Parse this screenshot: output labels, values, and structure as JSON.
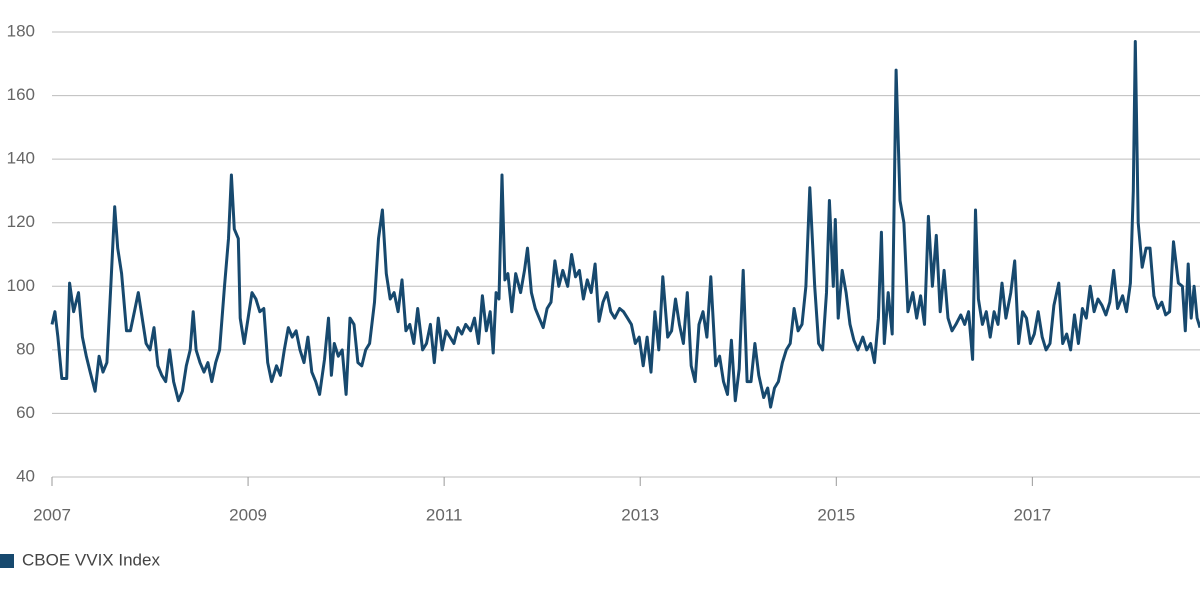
{
  "chart_data": {
    "type": "line",
    "x": [
      2007.0,
      2007.03,
      2007.06,
      2007.1,
      2007.15,
      2007.18,
      2007.22,
      2007.27,
      2007.31,
      2007.35,
      2007.39,
      2007.44,
      2007.48,
      2007.52,
      2007.56,
      2007.6,
      2007.64,
      2007.67,
      2007.71,
      2007.76,
      2007.8,
      2007.84,
      2007.88,
      2007.92,
      2007.96,
      2008.0,
      2008.04,
      2008.08,
      2008.12,
      2008.16,
      2008.2,
      2008.24,
      2008.29,
      2008.33,
      2008.37,
      2008.41,
      2008.44,
      2008.47,
      2008.51,
      2008.55,
      2008.59,
      2008.63,
      2008.67,
      2008.71,
      2008.76,
      2008.8,
      2008.83,
      2008.86,
      2008.9,
      2008.92,
      2008.96,
      2009.0,
      2009.04,
      2009.08,
      2009.12,
      2009.16,
      2009.2,
      2009.24,
      2009.29,
      2009.33,
      2009.37,
      2009.41,
      2009.45,
      2009.49,
      2009.53,
      2009.57,
      2009.61,
      2009.65,
      2009.69,
      2009.73,
      2009.78,
      2009.82,
      2009.85,
      2009.88,
      2009.92,
      2009.96,
      2010.0,
      2010.04,
      2010.08,
      2010.12,
      2010.16,
      2010.2,
      2010.24,
      2010.29,
      2010.33,
      2010.37,
      2010.41,
      2010.45,
      2010.49,
      2010.53,
      2010.57,
      2010.61,
      2010.65,
      2010.69,
      2010.73,
      2010.78,
      2010.82,
      2010.86,
      2010.9,
      2010.94,
      2010.98,
      2011.02,
      2011.06,
      2011.1,
      2011.14,
      2011.18,
      2011.22,
      2011.27,
      2011.31,
      2011.35,
      2011.39,
      2011.43,
      2011.47,
      2011.5,
      2011.53,
      2011.56,
      2011.59,
      2011.62,
      2011.65,
      2011.69,
      2011.73,
      2011.78,
      2011.82,
      2011.85,
      2011.89,
      2011.93,
      2011.97,
      2012.01,
      2012.05,
      2012.09,
      2012.13,
      2012.17,
      2012.21,
      2012.26,
      2012.3,
      2012.34,
      2012.38,
      2012.42,
      2012.46,
      2012.5,
      2012.54,
      2012.58,
      2012.62,
      2012.66,
      2012.7,
      2012.74,
      2012.79,
      2012.83,
      2012.87,
      2012.91,
      2012.95,
      2012.99,
      2013.03,
      2013.07,
      2013.11,
      2013.15,
      2013.19,
      2013.23,
      2013.28,
      2013.32,
      2013.36,
      2013.4,
      2013.44,
      2013.48,
      2013.52,
      2013.56,
      2013.6,
      2013.64,
      2013.68,
      2013.72,
      2013.77,
      2013.81,
      2013.85,
      2013.89,
      2013.93,
      2013.97,
      2014.01,
      2014.05,
      2014.09,
      2014.13,
      2014.17,
      2014.21,
      2014.26,
      2014.3,
      2014.33,
      2014.37,
      2014.41,
      2014.45,
      2014.49,
      2014.53,
      2014.57,
      2014.61,
      2014.65,
      2014.69,
      2014.73,
      2014.78,
      2014.82,
      2014.86,
      2014.9,
      2014.93,
      2014.97,
      2014.99,
      2015.02,
      2015.06,
      2015.1,
      2015.14,
      2015.18,
      2015.22,
      2015.27,
      2015.31,
      2015.35,
      2015.39,
      2015.43,
      2015.46,
      2015.49,
      2015.53,
      2015.57,
      2015.61,
      2015.65,
      2015.69,
      2015.73,
      2015.78,
      2015.82,
      2015.86,
      2015.9,
      2015.94,
      2015.98,
      2016.02,
      2016.06,
      2016.1,
      2016.14,
      2016.18,
      2016.22,
      2016.27,
      2016.31,
      2016.35,
      2016.39,
      2016.42,
      2016.45,
      2016.49,
      2016.53,
      2016.57,
      2016.61,
      2016.65,
      2016.69,
      2016.73,
      2016.78,
      2016.82,
      2016.86,
      2016.9,
      2016.94,
      2016.98,
      2017.02,
      2017.06,
      2017.1,
      2017.14,
      2017.18,
      2017.22,
      2017.27,
      2017.31,
      2017.35,
      2017.39,
      2017.43,
      2017.47,
      2017.51,
      2017.55,
      2017.59,
      2017.63,
      2017.67,
      2017.71,
      2017.75,
      2017.79,
      2017.83,
      2017.87,
      2017.92,
      2017.96,
      2018.0,
      2018.03,
      2018.05,
      2018.08,
      2018.12,
      2018.16,
      2018.2,
      2018.24,
      2018.28,
      2018.32,
      2018.36,
      2018.4,
      2018.44,
      2018.49,
      2018.53,
      2018.56,
      2018.59,
      2018.62,
      2018.65,
      2018.68,
      2018.71
    ],
    "series": [
      {
        "name": "CBOE VVIX Index",
        "color": "#17496e",
        "values": [
          88,
          92,
          84,
          71,
          71,
          101,
          92,
          98,
          84,
          78,
          73,
          67,
          78,
          73,
          76,
          100,
          125,
          112,
          104,
          86,
          86,
          92,
          98,
          90,
          82,
          80,
          87,
          75,
          72,
          70,
          80,
          70,
          64,
          67,
          75,
          80,
          92,
          80,
          76,
          73,
          76,
          70,
          76,
          80,
          100,
          115,
          135,
          118,
          115,
          90,
          82,
          90,
          98,
          96,
          92,
          93,
          76,
          70,
          75,
          72,
          80,
          87,
          84,
          86,
          80,
          76,
          84,
          73,
          70,
          66,
          77,
          90,
          72,
          82,
          78,
          80,
          66,
          90,
          88,
          76,
          75,
          80,
          82,
          95,
          115,
          124,
          104,
          96,
          98,
          92,
          102,
          86,
          88,
          82,
          93,
          80,
          82,
          88,
          76,
          90,
          80,
          86,
          84,
          82,
          87,
          85,
          88,
          86,
          90,
          82,
          97,
          86,
          92,
          79,
          98,
          96,
          135,
          102,
          104,
          92,
          104,
          98,
          105,
          112,
          98,
          93,
          90,
          87,
          93,
          95,
          108,
          100,
          105,
          100,
          110,
          103,
          105,
          96,
          102,
          98,
          107,
          89,
          95,
          98,
          92,
          90,
          93,
          92,
          90,
          88,
          82,
          84,
          75,
          84,
          73,
          92,
          80,
          103,
          84,
          86,
          96,
          88,
          82,
          98,
          75,
          70,
          88,
          92,
          84,
          103,
          75,
          78,
          70,
          66,
          83,
          64,
          74,
          105,
          70,
          70,
          82,
          72,
          65,
          68,
          62,
          68,
          70,
          76,
          80,
          82,
          93,
          86,
          88,
          100,
          131,
          100,
          82,
          80,
          98,
          127,
          100,
          121,
          90,
          105,
          98,
          88,
          83,
          80,
          84,
          80,
          82,
          76,
          90,
          117,
          82,
          98,
          85,
          168,
          127,
          120,
          92,
          98,
          90,
          97,
          88,
          122,
          100,
          116,
          92,
          105,
          90,
          86,
          88,
          91,
          88,
          92,
          77,
          124,
          96,
          88,
          92,
          84,
          92,
          88,
          101,
          90,
          98,
          108,
          82,
          92,
          90,
          82,
          85,
          92,
          84,
          80,
          82,
          94,
          101,
          82,
          85,
          80,
          91,
          82,
          93,
          90,
          100,
          92,
          96,
          94,
          91,
          95,
          105,
          93,
          97,
          92,
          101,
          130,
          177,
          120,
          106,
          112,
          112,
          97,
          93,
          95,
          91,
          92,
          114,
          101,
          100,
          86,
          107,
          90,
          100,
          90,
          87
        ]
      }
    ],
    "xlim": [
      2007,
      2018.71
    ],
    "xticks": [
      2007,
      2009,
      2011,
      2013,
      2015,
      2017
    ],
    "ylim": [
      40,
      180
    ],
    "yticks": [
      40,
      60,
      80,
      100,
      120,
      140,
      160,
      180
    ],
    "grid": true,
    "legend": "bottom-left"
  }
}
